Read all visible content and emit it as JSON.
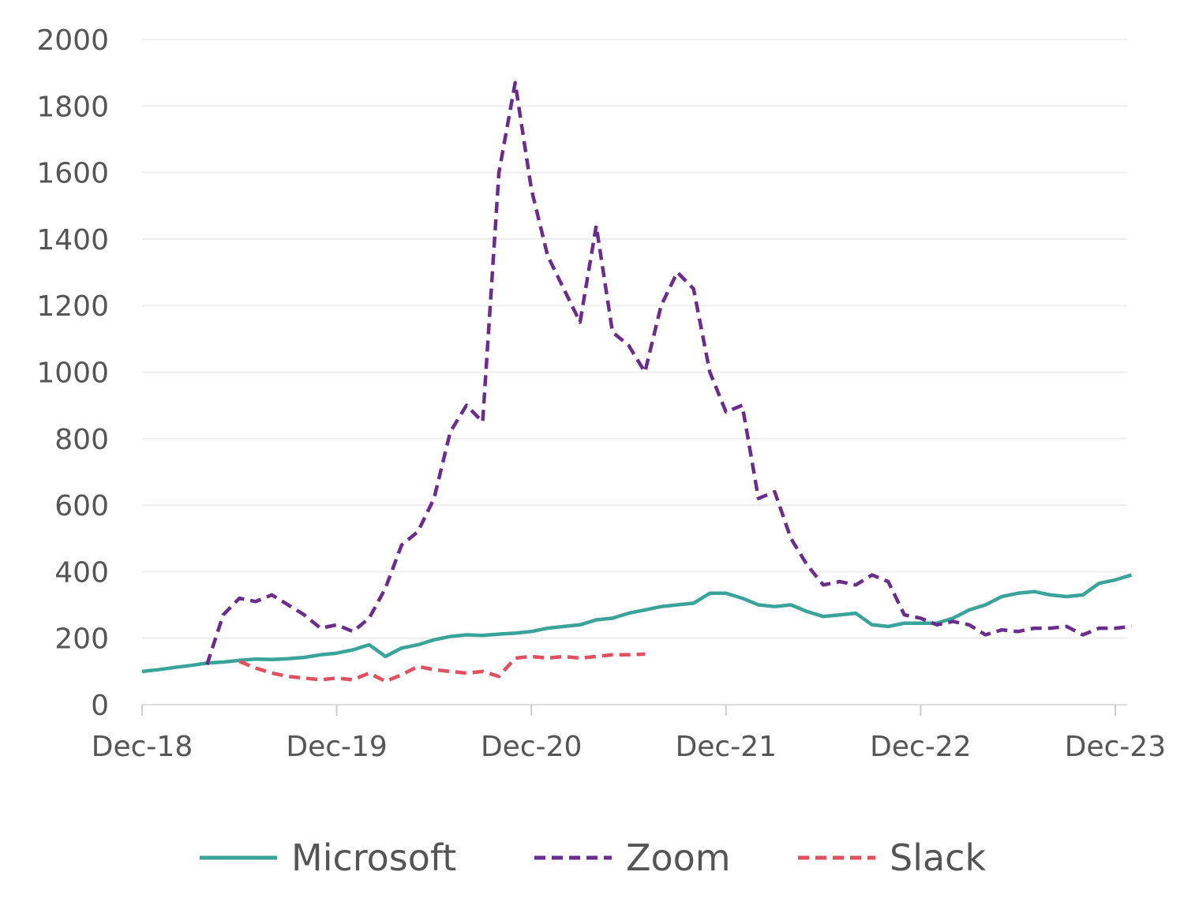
{
  "chart_data": {
    "type": "line",
    "title": "",
    "xlabel": "",
    "ylabel": "",
    "ylim": [
      0,
      2000
    ],
    "y_ticks": [
      0,
      200,
      400,
      600,
      800,
      1000,
      1200,
      1400,
      1600,
      1800,
      2000
    ],
    "y_tick_labels": [
      "0",
      "200",
      "400",
      "600",
      "800",
      "1000",
      "1200",
      "1400",
      "1600",
      "1800",
      "2000"
    ],
    "xlim": [
      "2018-12",
      "2024-01"
    ],
    "x_ticks": [
      "2018-12",
      "2019-12",
      "2020-12",
      "2021-12",
      "2022-12",
      "2023-12"
    ],
    "x_tick_labels": [
      "Dec-18",
      "Dec-19",
      "Dec-20",
      "Dec-21",
      "Dec-22",
      "Dec-23"
    ],
    "grid": "horizontal",
    "legend": "bottom",
    "series": [
      {
        "name": "Microsoft",
        "color": "#3aa39a",
        "dash": "solid",
        "points": [
          [
            "2018-12",
            100
          ],
          [
            "2019-01",
            105
          ],
          [
            "2019-02",
            112
          ],
          [
            "2019-03",
            118
          ],
          [
            "2019-04",
            125
          ],
          [
            "2019-05",
            128
          ],
          [
            "2019-06",
            133
          ],
          [
            "2019-07",
            137
          ],
          [
            "2019-08",
            136
          ],
          [
            "2019-09",
            138
          ],
          [
            "2019-10",
            142
          ],
          [
            "2019-11",
            150
          ],
          [
            "2019-12",
            155
          ],
          [
            "2020-01",
            165
          ],
          [
            "2020-02",
            180
          ],
          [
            "2020-03",
            145
          ],
          [
            "2020-04",
            170
          ],
          [
            "2020-05",
            180
          ],
          [
            "2020-06",
            195
          ],
          [
            "2020-07",
            205
          ],
          [
            "2020-08",
            210
          ],
          [
            "2020-09",
            208
          ],
          [
            "2020-10",
            212
          ],
          [
            "2020-11",
            215
          ],
          [
            "2020-12",
            220
          ],
          [
            "2021-01",
            230
          ],
          [
            "2021-02",
            235
          ],
          [
            "2021-03",
            240
          ],
          [
            "2021-04",
            255
          ],
          [
            "2021-05",
            260
          ],
          [
            "2021-06",
            275
          ],
          [
            "2021-07",
            285
          ],
          [
            "2021-08",
            295
          ],
          [
            "2021-09",
            300
          ],
          [
            "2021-10",
            305
          ],
          [
            "2021-11",
            335
          ],
          [
            "2021-12",
            335
          ],
          [
            "2022-01",
            320
          ],
          [
            "2022-02",
            300
          ],
          [
            "2022-03",
            295
          ],
          [
            "2022-04",
            300
          ],
          [
            "2022-05",
            280
          ],
          [
            "2022-06",
            265
          ],
          [
            "2022-07",
            270
          ],
          [
            "2022-08",
            275
          ],
          [
            "2022-09",
            240
          ],
          [
            "2022-10",
            235
          ],
          [
            "2022-11",
            245
          ],
          [
            "2022-12",
            245
          ],
          [
            "2023-01",
            245
          ],
          [
            "2023-02",
            260
          ],
          [
            "2023-03",
            285
          ],
          [
            "2023-04",
            300
          ],
          [
            "2023-05",
            325
          ],
          [
            "2023-06",
            335
          ],
          [
            "2023-07",
            340
          ],
          [
            "2023-08",
            330
          ],
          [
            "2023-09",
            325
          ],
          [
            "2023-10",
            330
          ],
          [
            "2023-11",
            365
          ],
          [
            "2023-12",
            375
          ],
          [
            "2024-01",
            390
          ]
        ]
      },
      {
        "name": "Zoom",
        "color": "#6b2d8c",
        "dash": "dashed",
        "points": [
          [
            "2019-04",
            120
          ],
          [
            "2019-05",
            270
          ],
          [
            "2019-06",
            320
          ],
          [
            "2019-07",
            310
          ],
          [
            "2019-08",
            330
          ],
          [
            "2019-09",
            300
          ],
          [
            "2019-10",
            270
          ],
          [
            "2019-11",
            230
          ],
          [
            "2019-12",
            240
          ],
          [
            "2020-01",
            220
          ],
          [
            "2020-02",
            260
          ],
          [
            "2020-03",
            350
          ],
          [
            "2020-04",
            480
          ],
          [
            "2020-05",
            520
          ],
          [
            "2020-06",
            620
          ],
          [
            "2020-07",
            820
          ],
          [
            "2020-08",
            900
          ],
          [
            "2020-09",
            850
          ],
          [
            "2020-10",
            1600
          ],
          [
            "2020-11",
            1870
          ],
          [
            "2020-12",
            1550
          ],
          [
            "2021-01",
            1350
          ],
          [
            "2021-02",
            1250
          ],
          [
            "2021-03",
            1150
          ],
          [
            "2021-04",
            1440
          ],
          [
            "2021-05",
            1120
          ],
          [
            "2021-06",
            1080
          ],
          [
            "2021-07",
            1000
          ],
          [
            "2021-08",
            1200
          ],
          [
            "2021-09",
            1300
          ],
          [
            "2021-10",
            1250
          ],
          [
            "2021-11",
            1000
          ],
          [
            "2021-12",
            880
          ],
          [
            "2022-01",
            900
          ],
          [
            "2022-02",
            620
          ],
          [
            "2022-03",
            640
          ],
          [
            "2022-04",
            500
          ],
          [
            "2022-05",
            420
          ],
          [
            "2022-06",
            360
          ],
          [
            "2022-07",
            370
          ],
          [
            "2022-08",
            360
          ],
          [
            "2022-09",
            390
          ],
          [
            "2022-10",
            370
          ],
          [
            "2022-11",
            270
          ],
          [
            "2022-12",
            260
          ],
          [
            "2023-01",
            240
          ],
          [
            "2023-02",
            250
          ],
          [
            "2023-03",
            240
          ],
          [
            "2023-04",
            210
          ],
          [
            "2023-05",
            225
          ],
          [
            "2023-06",
            220
          ],
          [
            "2023-07",
            230
          ],
          [
            "2023-08",
            230
          ],
          [
            "2023-09",
            235
          ],
          [
            "2023-10",
            210
          ],
          [
            "2023-11",
            230
          ],
          [
            "2023-12",
            230
          ],
          [
            "2024-01",
            235
          ]
        ]
      },
      {
        "name": "Slack",
        "color": "#e0505f",
        "dash": "dashed",
        "points": [
          [
            "2019-06",
            130
          ],
          [
            "2019-07",
            110
          ],
          [
            "2019-08",
            95
          ],
          [
            "2019-09",
            85
          ],
          [
            "2019-10",
            80
          ],
          [
            "2019-11",
            75
          ],
          [
            "2019-12",
            80
          ],
          [
            "2020-01",
            75
          ],
          [
            "2020-02",
            95
          ],
          [
            "2020-03",
            70
          ],
          [
            "2020-04",
            90
          ],
          [
            "2020-05",
            115
          ],
          [
            "2020-06",
            105
          ],
          [
            "2020-07",
            100
          ],
          [
            "2020-08",
            95
          ],
          [
            "2020-09",
            100
          ],
          [
            "2020-10",
            85
          ],
          [
            "2020-11",
            140
          ],
          [
            "2020-12",
            145
          ],
          [
            "2021-01",
            140
          ],
          [
            "2021-02",
            145
          ],
          [
            "2021-03",
            140
          ],
          [
            "2021-04",
            145
          ],
          [
            "2021-05",
            150
          ],
          [
            "2021-06",
            150
          ],
          [
            "2021-07",
            152
          ]
        ]
      }
    ]
  }
}
